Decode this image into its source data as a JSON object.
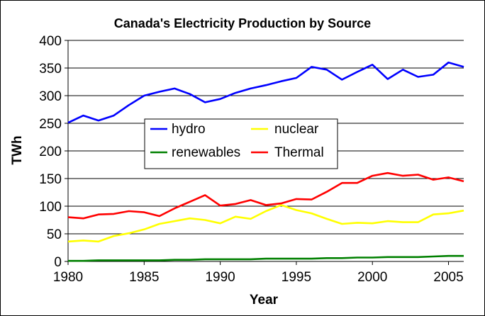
{
  "chart_data": {
    "type": "line",
    "title": "Canada's Electricity Production by Source",
    "xlabel": "Year",
    "ylabel": "TWh",
    "xlim": [
      1980,
      2006
    ],
    "ylim": [
      0,
      400
    ],
    "grid": "horizontal major gridlines",
    "legend_position": "center",
    "x": [
      1980,
      1981,
      1982,
      1983,
      1984,
      1985,
      1986,
      1987,
      1988,
      1989,
      1990,
      1991,
      1992,
      1993,
      1994,
      1995,
      1996,
      1997,
      1998,
      1999,
      2000,
      2001,
      2002,
      2003,
      2004,
      2005,
      2006
    ],
    "x_ticks": [
      "1980",
      "1985",
      "1990",
      "1995",
      "2000",
      "2005"
    ],
    "y_ticks": [
      "0",
      "50",
      "100",
      "150",
      "200",
      "250",
      "300",
      "350",
      "400"
    ],
    "series": [
      {
        "name": "hydro",
        "color": "#0000FF",
        "values": [
          251,
          264,
          255,
          264,
          283,
          300,
          307,
          313,
          303,
          288,
          294,
          305,
          313,
          319,
          326,
          332,
          352,
          347,
          329,
          343,
          356,
          330,
          347,
          334,
          338,
          360,
          352
        ]
      },
      {
        "name": "nuclear",
        "color": "#FFFF00",
        "values": [
          36,
          38,
          36,
          46,
          51,
          58,
          68,
          73,
          78,
          75,
          69,
          81,
          77,
          91,
          102,
          93,
          87,
          77,
          68,
          70,
          69,
          73,
          71,
          71,
          85,
          87,
          92
        ]
      },
      {
        "name": "renewables",
        "color": "#008000",
        "values": [
          1,
          1,
          2,
          2,
          2,
          2,
          2,
          3,
          3,
          4,
          4,
          4,
          4,
          5,
          5,
          5,
          5,
          6,
          6,
          7,
          7,
          8,
          8,
          8,
          9,
          10,
          10
        ]
      },
      {
        "name": "Thermal",
        "color": "#FF0000",
        "values": [
          80,
          78,
          85,
          86,
          91,
          89,
          82,
          96,
          108,
          120,
          101,
          104,
          111,
          102,
          105,
          113,
          112,
          126,
          142,
          142,
          155,
          160,
          155,
          157,
          148,
          152,
          145
        ]
      }
    ]
  }
}
